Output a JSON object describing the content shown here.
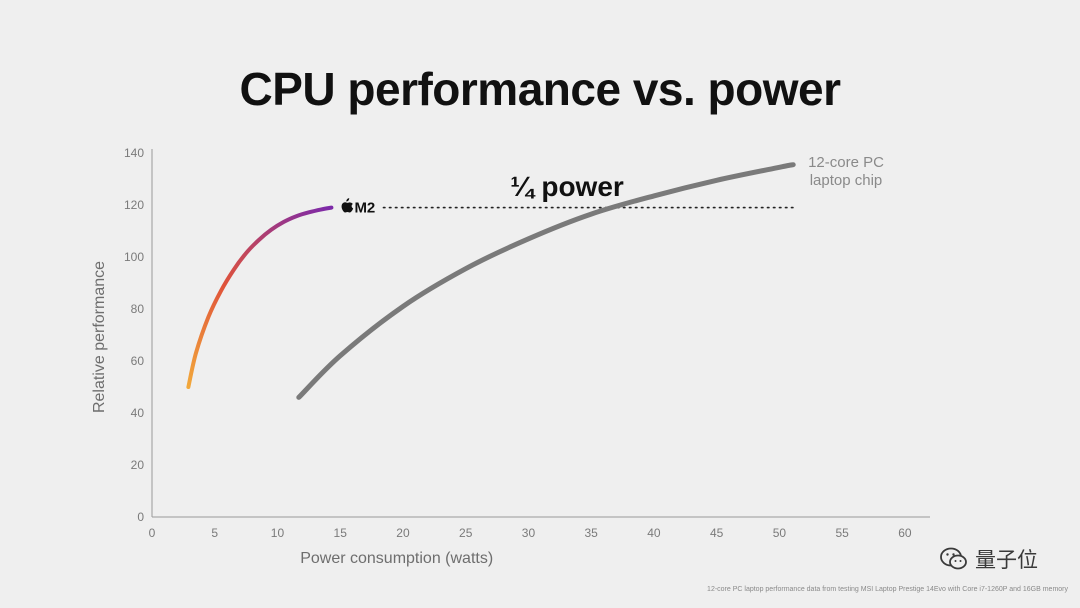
{
  "title": "CPU performance vs. power",
  "watermark": "量子位",
  "footnote": "12-core PC laptop performance data from testing MSI Laptop Prestige 14Evo with Core i7-1260P and 16GB memory",
  "chart_data": {
    "type": "line",
    "title": "CPU performance vs. power",
    "xlabel": "Power consumption (watts)",
    "ylabel": "Relative performance",
    "xlim": [
      0,
      62
    ],
    "ylim": [
      0,
      140
    ],
    "xticks": [
      0,
      5,
      10,
      15,
      20,
      25,
      30,
      35,
      40,
      45,
      50,
      55,
      60
    ],
    "yticks": [
      0,
      20,
      40,
      60,
      80,
      100,
      120,
      140
    ],
    "grid": false,
    "series": [
      {
        "name": "M2",
        "color_start": "#f2a93b",
        "color_mid": "#e0533a",
        "color_end": "#7d2aa8",
        "x": [
          2.9,
          3.5,
          4.5,
          5.5,
          6.5,
          7.5,
          8.5,
          9.5,
          10.5,
          11.5,
          12.5,
          13.5,
          14.3
        ],
        "y": [
          50,
          63,
          77,
          87,
          95,
          101.5,
          106.5,
          110.5,
          113.5,
          115.7,
          117.2,
          118.3,
          119
        ]
      },
      {
        "name": "12-core PC laptop chip",
        "color": "#7a7a7a",
        "x": [
          11.7,
          15,
          20,
          25,
          30,
          35,
          40,
          45,
          50,
          51.1
        ],
        "y": [
          46,
          62,
          81,
          95.5,
          107,
          116.5,
          123.5,
          129.5,
          134.5,
          135.5
        ]
      }
    ],
    "annotations": [
      {
        "text": "¼ power",
        "type": "dotted-line",
        "y": 119,
        "x_from": 14.3,
        "x_to": 51.1
      }
    ]
  }
}
